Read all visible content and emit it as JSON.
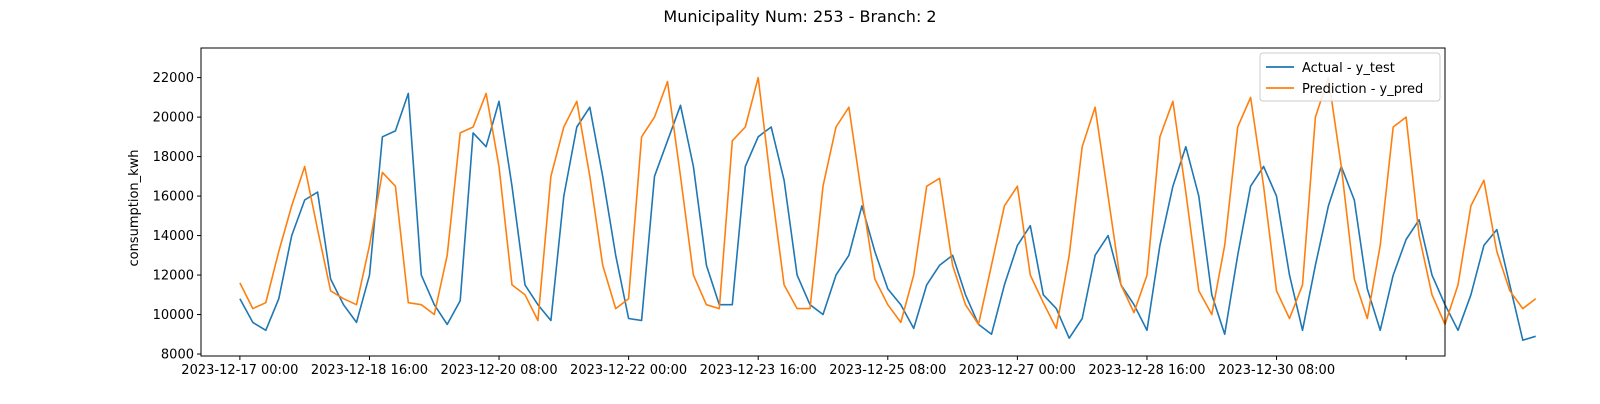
{
  "chart_data": {
    "type": "line",
    "title": "Municipality Num: 253 - Branch: 2",
    "xlabel": "",
    "ylabel": "consumption_kwh",
    "x_start": "2023-12-17 00:00",
    "x_step_hours": 4,
    "xlim": [
      "2023-12-16 12:00",
      "2024-01-01 12:00"
    ],
    "ylim": [
      7900,
      23500
    ],
    "x_ticks": [
      "2023-12-17 00:00",
      "2023-12-18 16:00",
      "2023-12-20 08:00",
      "2023-12-22 00:00",
      "2023-12-23 16:00",
      "2023-12-25 08:00",
      "2023-12-27 00:00",
      "2023-12-28 16:00",
      "2023-12-30 08:00",
      "2024-01-01 00:00"
    ],
    "x_tick_labels": [
      "2023-12-17 00:00",
      "2023-12-18 16:00",
      "2023-12-20 08:00",
      "2023-12-22 00:00",
      "2023-12-23 16:00",
      "2023-12-25 08:00",
      "2023-12-27 00:00",
      "2023-12-28 16:00",
      "2023-12-30 08:00",
      ""
    ],
    "y_ticks": [
      8000,
      10000,
      12000,
      14000,
      16000,
      18000,
      20000,
      22000
    ],
    "grid": false,
    "legend_position": "top-right",
    "series": [
      {
        "name": "Actual - y_test",
        "color": "#1f77b4",
        "values": [
          10800,
          9600,
          9200,
          10800,
          14000,
          15800,
          16200,
          11800,
          10500,
          9600,
          12000,
          19000,
          19300,
          21200,
          12000,
          10500,
          9500,
          10700,
          19200,
          18500,
          20800,
          16500,
          11500,
          10500,
          9700,
          16000,
          19500,
          20500,
          17000,
          13000,
          9800,
          9700,
          17000,
          18800,
          20600,
          17500,
          12500,
          10500,
          10500,
          17500,
          19000,
          19500,
          16800,
          12000,
          10500,
          10000,
          12000,
          13000,
          15500,
          13200,
          11300,
          10500,
          9300,
          11500,
          12500,
          13000,
          11000,
          9500,
          9000,
          11500,
          13500,
          14500,
          11000,
          10300,
          8800,
          9800,
          13000,
          14000,
          11500,
          10500,
          9200,
          13500,
          16500,
          18500,
          16000,
          11000,
          9000,
          13000,
          16500,
          17500,
          16000,
          12000,
          9200,
          12500,
          15500,
          17500,
          15800,
          11300,
          9200,
          12000,
          13800,
          14800,
          12000,
          10500,
          9200,
          11000,
          13500,
          14300,
          11500,
          8700,
          8900
        ]
      },
      {
        "name": "Prediction - y_pred",
        "color": "#ff7f0e",
        "values": [
          11600,
          10300,
          10600,
          13200,
          15500,
          17500,
          14300,
          11200,
          10800,
          10500,
          13500,
          17200,
          16500,
          10600,
          10500,
          10000,
          13000,
          19200,
          19500,
          21200,
          17500,
          11500,
          11000,
          9700,
          17000,
          19500,
          20800,
          17000,
          12500,
          10300,
          10800,
          19000,
          20000,
          21800,
          17000,
          12000,
          10500,
          10300,
          18800,
          19500,
          22000,
          16500,
          11500,
          10300,
          10300,
          16500,
          19500,
          20500,
          16000,
          11800,
          10500,
          9600,
          12000,
          16500,
          16900,
          12500,
          10500,
          9500,
          12500,
          15500,
          16500,
          12000,
          10600,
          9300,
          13000,
          18500,
          20500,
          16000,
          11500,
          10100,
          12000,
          19000,
          20800,
          16200,
          11200,
          10000,
          13500,
          19500,
          21000,
          16500,
          11200,
          9800,
          11500,
          20000,
          22000,
          17500,
          11800,
          9800,
          13500,
          19500,
          20000,
          14000,
          11000,
          9500,
          11500,
          15500,
          16800,
          13200,
          11200,
          10300,
          10800
        ]
      }
    ]
  }
}
